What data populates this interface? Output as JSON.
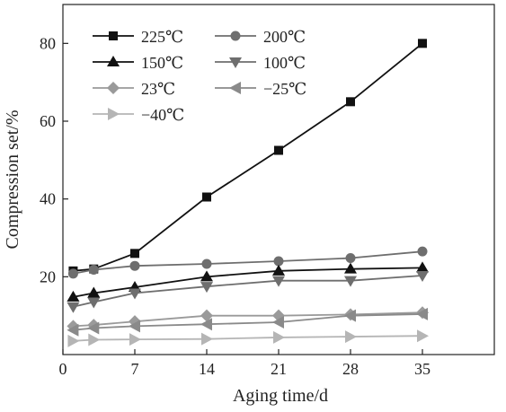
{
  "chart_data": {
    "type": "line",
    "title": "",
    "xlabel": "Aging time/d",
    "ylabel": "Compression set/%",
    "xlim": [
      0,
      42
    ],
    "ylim": [
      0,
      90
    ],
    "xticks": [
      0,
      7,
      14,
      21,
      28,
      35
    ],
    "yticks": [
      20,
      40,
      60,
      80
    ],
    "x_tick_labels": [
      "0",
      "7",
      "14",
      "21",
      "28",
      "35"
    ],
    "y_tick_labels": [
      "20",
      "40",
      "60",
      "80"
    ],
    "x": [
      1,
      3,
      7,
      14,
      21,
      28,
      35
    ],
    "grid": false,
    "legend_position": "top-left",
    "series": [
      {
        "name": "225℃",
        "marker": "square",
        "color": "#111111",
        "values": [
          21.5,
          22,
          26,
          40.5,
          52.5,
          65,
          80
        ]
      },
      {
        "name": "200℃",
        "marker": "circle",
        "color": "#6e6e6e",
        "values": [
          20.8,
          21.8,
          22.8,
          23.3,
          24,
          24.8,
          26.5
        ]
      },
      {
        "name": "150℃",
        "marker": "triangle-up",
        "color": "#111111",
        "values": [
          14.8,
          15.8,
          17.3,
          20,
          21.5,
          22,
          22.3
        ]
      },
      {
        "name": "100℃",
        "marker": "triangle-down",
        "color": "#6e6e6e",
        "values": [
          12.3,
          13.5,
          15.8,
          17.5,
          19,
          19,
          20.3
        ]
      },
      {
        "name": "23℃",
        "marker": "diamond",
        "color": "#9a9a9a",
        "values": [
          7.3,
          7.6,
          8.5,
          10,
          10,
          10.3,
          10.8
        ]
      },
      {
        "name": "−25℃",
        "marker": "triangle-left",
        "color": "#8a8a8a",
        "values": [
          6.3,
          6.8,
          7.3,
          7.8,
          8.3,
          10,
          10.4
        ]
      },
      {
        "name": "−40℃",
        "marker": "triangle-right",
        "color": "#b5b5b5",
        "values": [
          3.5,
          3.8,
          3.9,
          4,
          4.4,
          4.6,
          4.8
        ]
      }
    ]
  }
}
